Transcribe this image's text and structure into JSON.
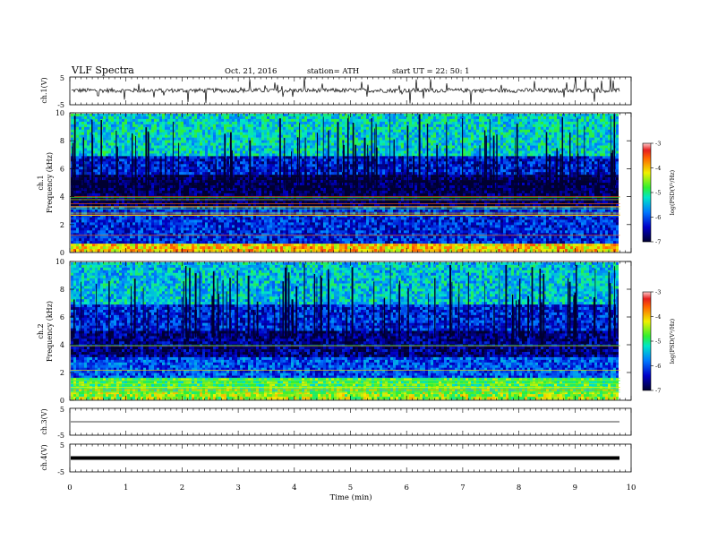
{
  "header": {
    "title": "VLF  Spectra",
    "date": "Oct. 21, 2016",
    "station": "station= ATH",
    "start": "start  UT  =    22: 50: 1"
  },
  "colors": {
    "axis": "#000000",
    "waveform": "#000000",
    "spectrogram_low": "#000040",
    "spectrogram_mid": "#0a3cc8",
    "spectrogram_high": "#28e6a0"
  },
  "chart_data": [
    {
      "type": "line",
      "title": "",
      "ylabel": "ch.1(V)",
      "xlabel": "",
      "xlim": [
        0,
        10
      ],
      "ylim": [
        -5,
        5
      ],
      "yticks": [
        "5",
        "-5"
      ],
      "data_end_min": 9.8,
      "series": [
        {
          "values": [
            0
          ]
        }
      ],
      "note_level": "baseline near 0 V with frequent spikes"
    },
    {
      "type": "heatmap",
      "title": "",
      "ylabel": "ch.1\nFrequency  (kHz)",
      "xlim": [
        0,
        10
      ],
      "ylim": [
        0,
        10
      ],
      "yticks": [
        "0",
        "2",
        "4",
        "6",
        "8",
        "10"
      ],
      "colorbar": {
        "label": "log(PSD(V²/Hz)",
        "range": [
          -7,
          -3
        ],
        "ticks": [
          "-3",
          "-4",
          "-5",
          "-6",
          "-7"
        ]
      },
      "bands_khz": [
        {
          "from": 0,
          "to": 0.5,
          "level": -4
        },
        {
          "from": 0.5,
          "to": 3.2,
          "level": -6.2
        },
        {
          "from": 3.2,
          "to": 5.5,
          "level": -6.9
        },
        {
          "from": 5.5,
          "to": 7,
          "level": -6.3
        },
        {
          "from": 7,
          "to": 10,
          "level": -5.3
        }
      ]
    },
    {
      "type": "heatmap",
      "title": "",
      "ylabel": "ch.2\nFrequency  (kHz)",
      "xlim": [
        0,
        10
      ],
      "ylim": [
        0,
        10
      ],
      "yticks": [
        "0",
        "2",
        "4",
        "6",
        "8",
        "10"
      ],
      "colorbar": {
        "label": "log(PSD(V²/Hz)",
        "range": [
          -7,
          -3
        ],
        "ticks": [
          "-3",
          "-4",
          "-5",
          "-6",
          "-7"
        ]
      },
      "bands_khz": [
        {
          "from": 0,
          "to": 0.5,
          "level": -4.5
        },
        {
          "from": 0.5,
          "to": 1.5,
          "level": -4.8
        },
        {
          "from": 1.5,
          "to": 3,
          "level": -6
        },
        {
          "from": 3,
          "to": 5,
          "level": -6.7
        },
        {
          "from": 5,
          "to": 7,
          "level": -6.2
        },
        {
          "from": 7,
          "to": 10,
          "level": -5.4
        }
      ]
    },
    {
      "type": "line",
      "title": "",
      "ylabel": "ch.3(V)",
      "xlim": [
        0,
        10
      ],
      "ylim": [
        -5,
        5
      ],
      "yticks": [
        "5",
        "-5"
      ],
      "data_end_min": 9.8,
      "series": [
        {
          "values": [
            0
          ]
        }
      ]
    },
    {
      "type": "line",
      "title": "",
      "ylabel": "ch.4(V)",
      "xlabel": "Time  (min)",
      "xlim": [
        0,
        10
      ],
      "ylim": [
        -5,
        5
      ],
      "yticks": [
        "5",
        "-5"
      ],
      "data_end_min": 9.8,
      "series": [
        {
          "values": [
            0
          ]
        }
      ]
    }
  ],
  "xaxis": {
    "label": "Time  (min)",
    "ticks": [
      "0",
      "1",
      "2",
      "3",
      "4",
      "5",
      "6",
      "7",
      "8",
      "9",
      "10"
    ]
  }
}
